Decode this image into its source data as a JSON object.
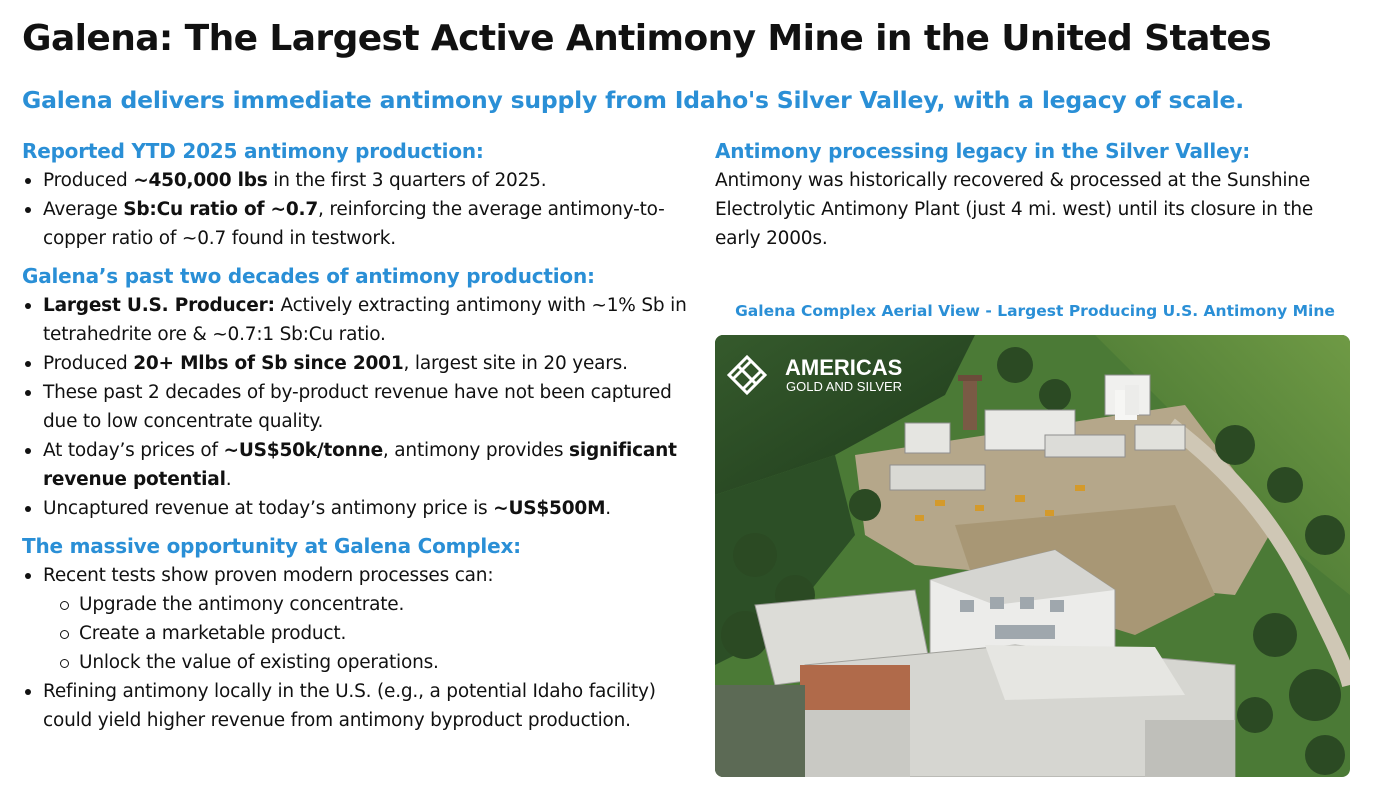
{
  "title": "Galena: The Largest Active Antimony Mine in the United States",
  "subtitle": "Galena delivers immediate antimony supply from Idaho's Silver Valley, with a legacy of scale.",
  "sections": {
    "ytd": {
      "heading": "Reported YTD 2025 antimony production:",
      "b1": {
        "t1": "Produced ",
        "b": "~450,000 lbs",
        "t2": " in the first 3 quarters of 2025."
      },
      "b2": {
        "t1": "Average ",
        "b": "Sb:Cu ratio of ~0.7",
        "t2": ", reinforcing the average antimony-to-copper ratio of ~0.7 found in testwork."
      }
    },
    "decades": {
      "heading": "Galena’s past two decades of antimony production:",
      "b1": {
        "b": "Largest U.S. Producer:",
        "t": " Actively extracting antimony with ~1% Sb in tetrahedrite ore & ~0.7:1 Sb:Cu ratio."
      },
      "b2": {
        "t1": "Produced ",
        "b": "20+ Mlbs of Sb since 2001",
        "t2": ", largest site in 20 years."
      },
      "b3": {
        "t": "These past 2 decades of by-product revenue have not been captured due to low concentrate quality."
      },
      "b4": {
        "t1": "At today’s prices of ",
        "b1": "~US$50k/tonne",
        "t2": ", antimony provides ",
        "b2": "significant revenue potential",
        "t3": "."
      },
      "b5": {
        "t1": "Uncaptured revenue at today’s antimony price is ",
        "b": "~US$500M",
        "t2": "."
      }
    },
    "opportunity": {
      "heading": "The massive opportunity at Galena Complex:",
      "b1": "Recent tests show proven modern processes can:",
      "sub": [
        "Upgrade the antimony concentrate.",
        "Create a marketable product.",
        "Unlock the value of existing operations."
      ],
      "b2": "Refining antimony locally in the U.S. (e.g., a potential Idaho facility) could yield higher revenue from antimony byproduct production."
    },
    "legacy": {
      "heading": "Antimony processing legacy in the Silver Valley:",
      "text": "Antimony was historically recovered & processed at the Sunshine Electrolytic Antimony Plant (just 4 mi. west) until its closure in the early 2000s."
    }
  },
  "photo": {
    "caption": "Galena Complex Aerial View - Largest Producing U.S. Antimony Mine",
    "logo_line1": "AMERICAS",
    "logo_line2": "GOLD AND SILVER"
  },
  "colors": {
    "accent": "#2a8fd6",
    "text": "#111111"
  }
}
